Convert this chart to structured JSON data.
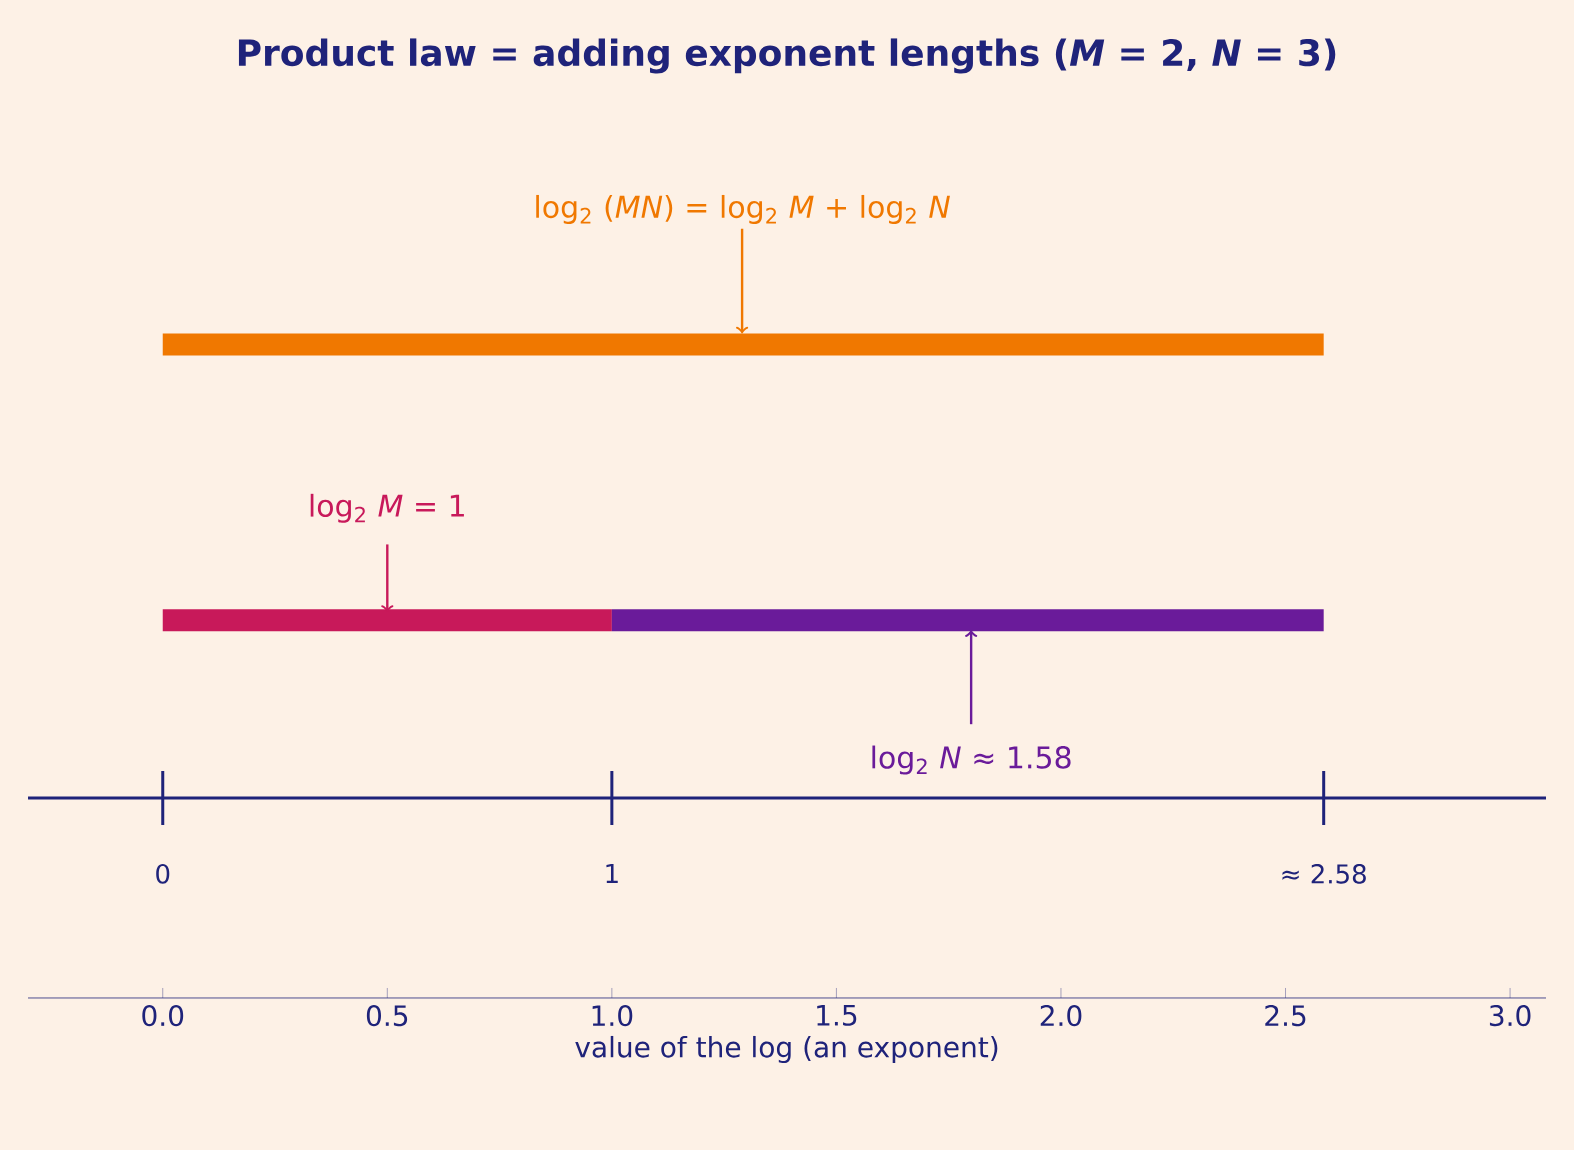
{
  "chart_data": {
    "type": "bar",
    "orientation": "horizontal",
    "stacked": true,
    "title": "**Product law = adding exponent lengths (*M* = 2, *N* = 3)**",
    "xlabel": "value of the log (an exponent)",
    "categories": [
      null,
      null
    ],
    "series": [
      {
        "color": "#f07800",
        "values": [
          2.585,
          null
        ]
      },
      {
        "color": "#c8195a",
        "values": [
          null,
          1
        ]
      },
      {
        "color": "#6a1b9a",
        "values": [
          null,
          1.585
        ]
      }
    ],
    "annotations": [
      "log$_{2}$ (*MN*) = log$_{2}$ *M* + log$_{2}$ *N*",
      "log$_{2}$ *M* = 1",
      "log$_{2}$ *N* ≈ 1.58"
    ],
    "xlim": [
      -0.3,
      3.08
    ],
    "xticks": [
      {
        "value": 0,
        "label": "0.0"
      },
      {
        "value": 0.5,
        "label": "0.5"
      },
      {
        "value": 1,
        "label": "1.0"
      },
      {
        "value": 1.5,
        "label": "1.5"
      },
      {
        "value": 2,
        "label": "2.0"
      },
      {
        "value": 2.5,
        "label": "2.5"
      },
      {
        "value": 3,
        "label": "3.0"
      }
    ],
    "x2lim": [
      -0.3,
      3.08
    ],
    "x2ticks": [
      0,
      1,
      {
        "value": 2.585,
        "label": "≈ 2.58"
      }
    ]
  }
}
